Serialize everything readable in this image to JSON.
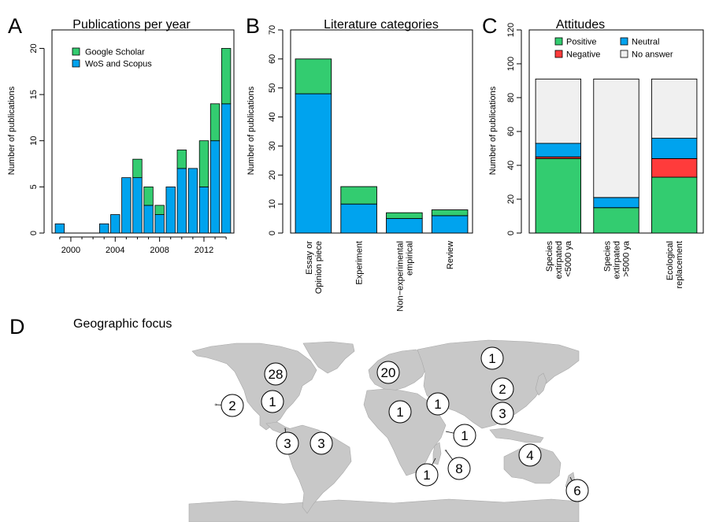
{
  "panels": {
    "A": {
      "letter": "A",
      "title": "Publications per year"
    },
    "B": {
      "letter": "B",
      "title": "Literature categories"
    },
    "C": {
      "letter": "C",
      "title": "Attitudes"
    },
    "D": {
      "letter": "D",
      "title": "Geographic focus"
    }
  },
  "colors": {
    "green": "#33cc70",
    "blue": "#00a3ee",
    "red": "#ff3b3b",
    "grey": "#f0f0f0",
    "land": "#c8c8c8"
  },
  "chart_data": [
    {
      "type": "bar",
      "stacked": true,
      "title": "Publications per year",
      "ylabel": "Number of publications",
      "xlabel": "",
      "x": [
        1999,
        2000,
        2001,
        2002,
        2003,
        2004,
        2005,
        2006,
        2007,
        2008,
        2009,
        2010,
        2011,
        2012,
        2013,
        2014
      ],
      "xlim": [
        1998.3,
        2014.7
      ],
      "xticks": [
        2000,
        2004,
        2008,
        2012
      ],
      "ylim": [
        0,
        22
      ],
      "yticks": [
        0,
        5,
        10,
        15,
        20
      ],
      "legend_position": "top-left",
      "series": [
        {
          "name": "WoS and Scopus",
          "color": "#00a3ee",
          "values": [
            1,
            0,
            0,
            0,
            1,
            2,
            6,
            6,
            3,
            2,
            5,
            7,
            7,
            5,
            10,
            14
          ]
        },
        {
          "name": "Google Scholar",
          "color": "#33cc70",
          "values": [
            0,
            0,
            0,
            0,
            0,
            0,
            0,
            2,
            2,
            1,
            0,
            2,
            0,
            5,
            4,
            6
          ]
        }
      ],
      "legend_order": [
        "Google Scholar",
        "WoS and Scopus"
      ]
    },
    {
      "type": "bar",
      "stacked": true,
      "title": "Literature categories",
      "ylabel": "Number of publications",
      "xlabel": "",
      "categories": [
        [
          "Essay or",
          "Opinion piece"
        ],
        [
          "Experiment"
        ],
        [
          "Non−experimental",
          "empirical"
        ],
        [
          "Review"
        ]
      ],
      "ylim": [
        0,
        70
      ],
      "yticks": [
        0,
        10,
        20,
        30,
        40,
        50,
        60,
        70
      ],
      "series": [
        {
          "color": "#00a3ee",
          "values": [
            48,
            10,
            5,
            6
          ]
        },
        {
          "color": "#33cc70",
          "values": [
            12,
            6,
            2,
            2
          ]
        }
      ]
    },
    {
      "type": "bar",
      "stacked": true,
      "title": "Attitudes",
      "ylabel": "Number of publications",
      "xlabel": "",
      "categories": [
        [
          "Species",
          "extirpated",
          "<5000 ya"
        ],
        [
          "Species",
          "extirpated",
          ">5000 ya"
        ],
        [
          "Ecological",
          "replacement"
        ]
      ],
      "ylim": [
        0,
        120
      ],
      "yticks": [
        0,
        20,
        40,
        60,
        80,
        100,
        120
      ],
      "legend_position": "top",
      "series": [
        {
          "name": "Positive",
          "color": "#33cc70",
          "values": [
            44,
            15,
            33
          ]
        },
        {
          "name": "Negative",
          "color": "#ff3b3b",
          "values": [
            1,
            0,
            11
          ]
        },
        {
          "name": "Neutral",
          "color": "#00a3ee",
          "values": [
            8,
            6,
            12
          ]
        },
        {
          "name": "No answer",
          "color": "#f0f0f0",
          "values": [
            38,
            70,
            35
          ]
        }
      ],
      "legend_order": [
        "Positive",
        "Neutral",
        "Negative",
        "No answer"
      ]
    },
    {
      "type": "map",
      "title": "Geographic focus",
      "counts": [
        {
          "region": "North America",
          "value": 28
        },
        {
          "region": "Europe",
          "value": 20
        },
        {
          "region": "Northern Asia",
          "value": 1
        },
        {
          "region": "East Asia",
          "value": 2
        },
        {
          "region": "Southeast Asia",
          "value": 3
        },
        {
          "region": "Hawaii",
          "value": 2
        },
        {
          "region": "Central America",
          "value": 1
        },
        {
          "region": "Galapagos",
          "value": 3
        },
        {
          "region": "South America",
          "value": 3
        },
        {
          "region": "West Africa",
          "value": 1
        },
        {
          "region": "North-East Africa",
          "value": 1
        },
        {
          "region": "Indian Ocean",
          "value": 1
        },
        {
          "region": "Mauritius",
          "value": 8
        },
        {
          "region": "Madagascar",
          "value": 1
        },
        {
          "region": "Australia",
          "value": 4
        },
        {
          "region": "New Zealand",
          "value": 6
        }
      ]
    }
  ]
}
